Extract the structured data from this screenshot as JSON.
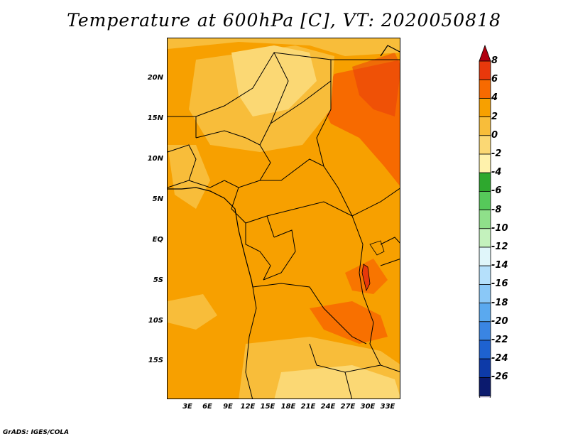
{
  "title": "Temperature at 600hPa [C], VT: 2020050818",
  "credit": "GrADS: IGES/COLA",
  "lat_labels": [
    "20N",
    "15N",
    "10N",
    "5N",
    "EQ",
    "5S",
    "10S",
    "15S"
  ],
  "lon_labels": [
    "3E",
    "6E",
    "9E",
    "12E",
    "15E",
    "18E",
    "21E",
    "24E",
    "27E",
    "30E",
    "33E"
  ],
  "colorbar": {
    "labels": [
      "8",
      "6",
      "4",
      "2",
      "0",
      "-2",
      "-4",
      "-6",
      "-8",
      "-10",
      "-12",
      "-14",
      "-16",
      "-18",
      "-20",
      "-22",
      "-24",
      "-26"
    ],
    "colors": [
      "#b0000f",
      "#e8380b",
      "#f76a00",
      "#f7a000",
      "#f8bd3a",
      "#fbd874",
      "#fff2ac",
      "#2ea82e",
      "#56c95a",
      "#8fe08a",
      "#c4f2bd",
      "#e0f6fa",
      "#b5e0fb",
      "#8ac8f7",
      "#5aa9ef",
      "#3a85e3",
      "#1e62d0",
      "#0d3aa8",
      "#0b1a6e",
      "#e6e0f5"
    ]
  }
}
